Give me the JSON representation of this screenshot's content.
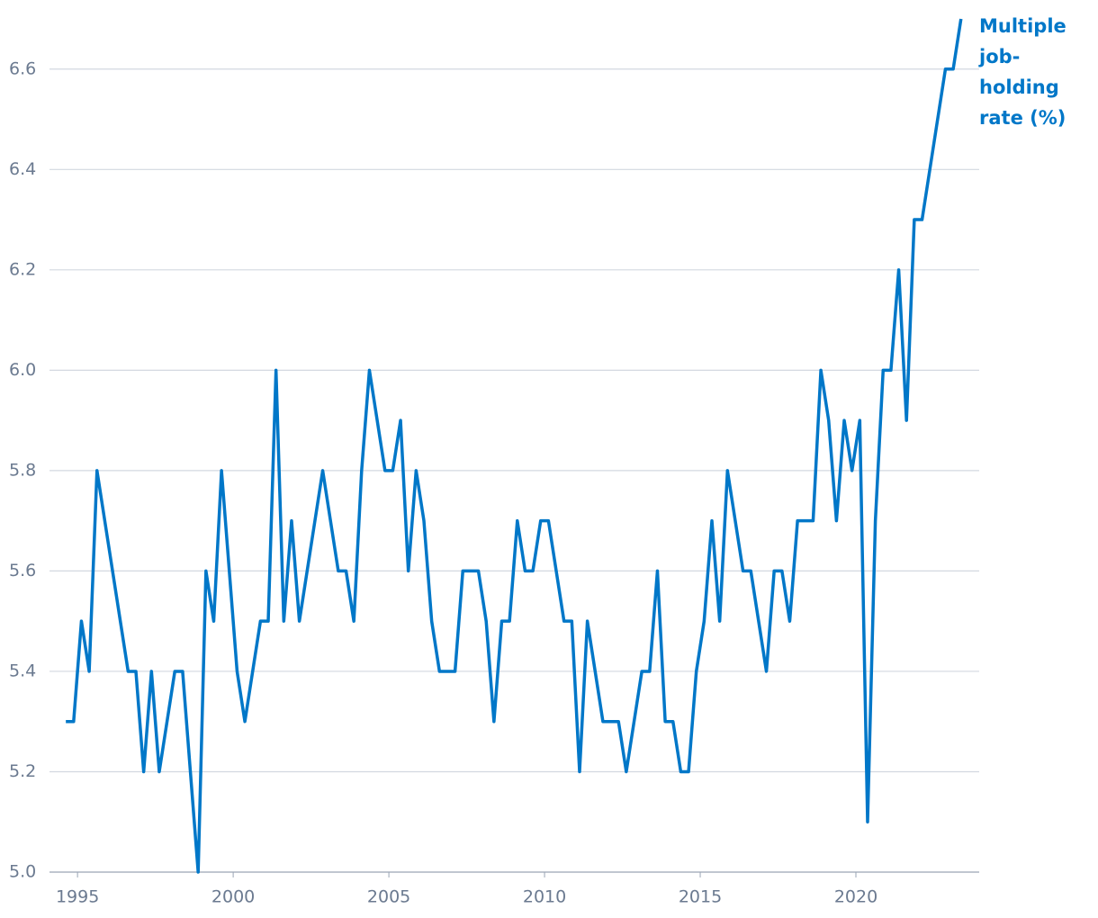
{
  "chart_data": {
    "type": "line",
    "annotation": [
      "Multiple",
      "job-",
      "holding",
      "rate (%)"
    ],
    "x": [
      1994.625,
      1994.875,
      1995.125,
      1995.375,
      1995.625,
      1995.875,
      1996.125,
      1996.375,
      1996.625,
      1996.875,
      1997.125,
      1997.375,
      1997.625,
      1997.875,
      1998.125,
      1998.375,
      1998.625,
      1998.875,
      1999.125,
      1999.375,
      1999.625,
      1999.875,
      2000.125,
      2000.375,
      2000.625,
      2000.875,
      2001.125,
      2001.375,
      2001.625,
      2001.875,
      2002.125,
      2002.375,
      2002.625,
      2002.875,
      2003.125,
      2003.375,
      2003.625,
      2003.875,
      2004.125,
      2004.375,
      2004.625,
      2004.875,
      2005.125,
      2005.375,
      2005.625,
      2005.875,
      2006.125,
      2006.375,
      2006.625,
      2006.875,
      2007.125,
      2007.375,
      2007.625,
      2007.875,
      2008.125,
      2008.375,
      2008.625,
      2008.875,
      2009.125,
      2009.375,
      2009.625,
      2009.875,
      2010.125,
      2010.375,
      2010.625,
      2010.875,
      2011.125,
      2011.375,
      2011.625,
      2011.875,
      2012.125,
      2012.375,
      2012.625,
      2012.875,
      2013.125,
      2013.375,
      2013.625,
      2013.875,
      2014.125,
      2014.375,
      2014.625,
      2014.875,
      2015.125,
      2015.375,
      2015.625,
      2015.875,
      2016.125,
      2016.375,
      2016.625,
      2016.875,
      2017.125,
      2017.375,
      2017.625,
      2017.875,
      2018.125,
      2018.375,
      2018.625,
      2018.875,
      2019.125,
      2019.375,
      2019.625,
      2019.875,
      2020.125,
      2020.375,
      2020.625,
      2020.875,
      2021.125,
      2021.375,
      2021.625,
      2021.875,
      2022.125,
      2022.375,
      2022.625,
      2022.875,
      2023.125,
      2023.375
    ],
    "series": [
      {
        "name": "Multiple job-holding rate (%)",
        "color": "#0077c8",
        "values": [
          5.3,
          5.3,
          5.5,
          5.4,
          5.8,
          5.7,
          5.6,
          5.5,
          5.4,
          5.4,
          5.2,
          5.4,
          5.2,
          5.3,
          5.4,
          5.4,
          5.2,
          5.0,
          5.6,
          5.5,
          5.8,
          5.6,
          5.4,
          5.3,
          5.4,
          5.5,
          5.5,
          6.0,
          5.5,
          5.7,
          5.5,
          5.6,
          5.7,
          5.8,
          5.7,
          5.6,
          5.6,
          5.5,
          5.8,
          6.0,
          5.9,
          5.8,
          5.8,
          5.9,
          5.6,
          5.8,
          5.7,
          5.5,
          5.4,
          5.4,
          5.4,
          5.6,
          5.6,
          5.6,
          5.5,
          5.3,
          5.5,
          5.5,
          5.7,
          5.6,
          5.6,
          5.7,
          5.7,
          5.6,
          5.5,
          5.5,
          5.2,
          5.5,
          5.4,
          5.3,
          5.3,
          5.3,
          5.2,
          5.3,
          5.4,
          5.4,
          5.6,
          5.3,
          5.3,
          5.2,
          5.2,
          5.4,
          5.5,
          5.7,
          5.5,
          5.8,
          5.7,
          5.6,
          5.6,
          5.5,
          5.4,
          5.6,
          5.6,
          5.5,
          5.7,
          5.7,
          5.7,
          6.0,
          5.9,
          5.7,
          5.9,
          5.8,
          5.9,
          5.1,
          5.7,
          6.0,
          6.0,
          6.2,
          5.9,
          6.3,
          6.3,
          6.4,
          6.5,
          6.6,
          6.6,
          6.7
        ]
      }
    ],
    "xlim": [
      1994.1,
      2023.96
    ],
    "xticks": [
      1995,
      2000,
      2005,
      2010,
      2015,
      2020
    ],
    "ylim": [
      5.0,
      6.7
    ],
    "yticks": [
      {
        "value": 5,
        "label": "5.0"
      },
      5.2,
      5.4,
      5.6,
      5.8,
      {
        "value": 6,
        "label": "6.0"
      },
      6.2,
      6.4,
      6.6
    ],
    "grid": true
  }
}
